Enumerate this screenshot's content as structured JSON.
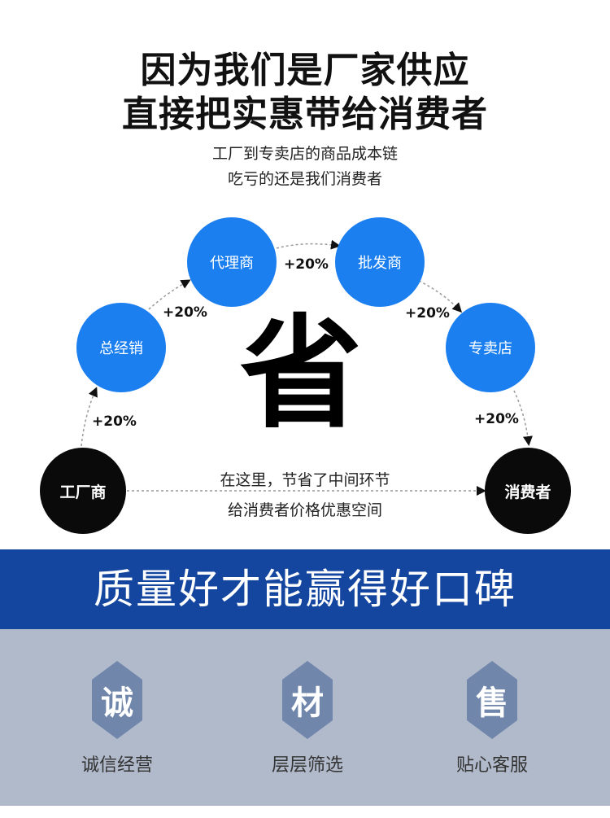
{
  "header": {
    "title_line1": "因为我们是厂家供应",
    "title_line2": "直接把实惠带给消费者",
    "subtitle_line1": "工厂到专卖店的商品成本链",
    "subtitle_line2": "吃亏的还是我们消费者"
  },
  "diagram": {
    "nodes": [
      {
        "label": "工厂商",
        "color": "#0a0a0a"
      },
      {
        "label": "总经销",
        "color": "#1b7ff0"
      },
      {
        "label": "代理商",
        "color": "#1b7ff0"
      },
      {
        "label": "批发商",
        "color": "#1b7ff0"
      },
      {
        "label": "专卖店",
        "color": "#1b7ff0"
      },
      {
        "label": "消费者",
        "color": "#0a0a0a"
      }
    ],
    "markups": [
      "+20%",
      "+20%",
      "+20%",
      "+20%",
      "+20%"
    ],
    "center_char": "省",
    "note_line1": "在这里，节省了中间环节",
    "note_line2": "给消费者价格优惠空间"
  },
  "banner": {
    "text": "质量好才能赢得好口碑",
    "color": "#1446a0"
  },
  "features": [
    {
      "icon_char": "诚",
      "label": "诚信经营"
    },
    {
      "icon_char": "材",
      "label": "层层筛选"
    },
    {
      "icon_char": "售",
      "label": "贴心客服"
    }
  ]
}
